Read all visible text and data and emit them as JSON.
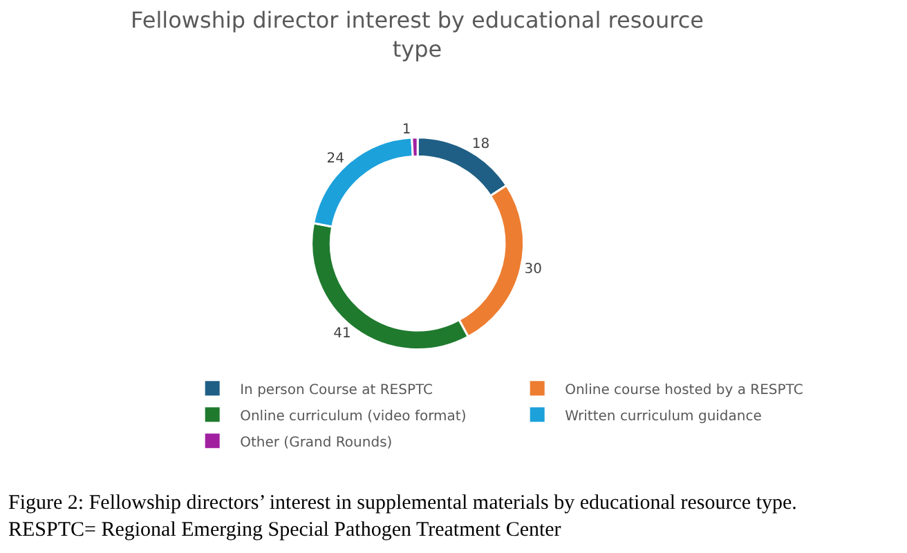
{
  "chart_data": {
    "type": "donut",
    "title": "Fellowship director interest by educational resource type",
    "categories": [
      "In person Course at RESPTC",
      "Online course hosted by a RESPTC",
      "Online curriculum (video format)",
      "Written curriculum guidance",
      "Other (Grand Rounds)"
    ],
    "values": [
      18,
      30,
      41,
      24,
      1
    ],
    "colors": [
      "#1f5f85",
      "#ed7d31",
      "#1f7a2e",
      "#1ca1db",
      "#a020a0"
    ],
    "data_labels": true,
    "legend": "bottom",
    "annotations": [
      "Figure 2: Fellowship directors’ interest in supplemental materials by educational resource type.\nRESPTC= Regional Emerging Special Pathogen Treatment Center"
    ]
  }
}
